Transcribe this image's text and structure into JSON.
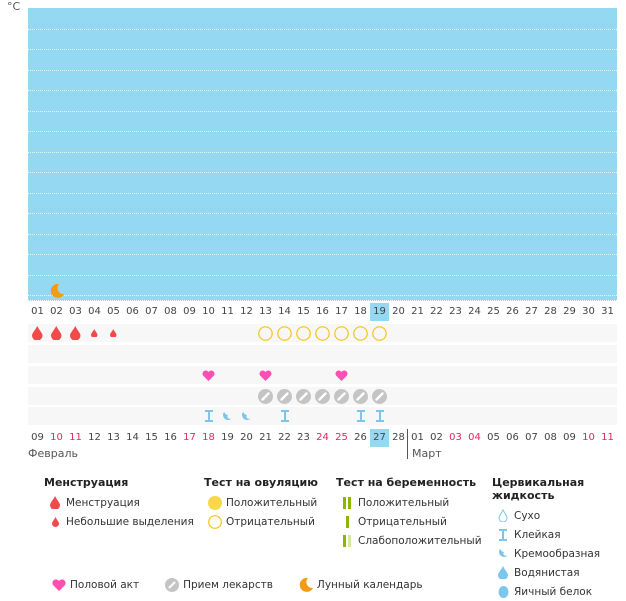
{
  "unit": "°C",
  "top_dates": [
    "01",
    "02",
    "03",
    "04",
    "05",
    "06",
    "07",
    "08",
    "09",
    "10",
    "11",
    "12",
    "13",
    "14",
    "15",
    "16",
    "17",
    "18",
    "19",
    "20",
    "21",
    "22",
    "23",
    "24",
    "25",
    "26",
    "27",
    "28",
    "29",
    "30",
    "31"
  ],
  "top_highlight": 18,
  "bottom_dates": [
    "09",
    "10",
    "11",
    "12",
    "13",
    "14",
    "15",
    "16",
    "17",
    "18",
    "19",
    "20",
    "21",
    "22",
    "23",
    "24",
    "25",
    "26",
    "27",
    "28",
    "01",
    "02",
    "03",
    "04",
    "05",
    "06",
    "07",
    "08",
    "09",
    "10",
    "11"
  ],
  "bottom_red": [
    1,
    2,
    8,
    9,
    15,
    16,
    22,
    23,
    29,
    30
  ],
  "bottom_highlight": 18,
  "months": {
    "feb": "Февраль",
    "mar": "Март"
  },
  "moon": [
    1
  ],
  "menstruation": {
    "0": "heavy",
    "1": "heavy",
    "2": "heavy",
    "3": "light",
    "4": "light"
  },
  "ovulation": {
    "12": "neg",
    "13": "neg",
    "14": "neg",
    "15": "neg",
    "16": "neg",
    "17": "neg",
    "18": "neg"
  },
  "sex": [
    9,
    12,
    16
  ],
  "pills": [
    12,
    13,
    14,
    15,
    16,
    17,
    18
  ],
  "mucus": {
    "9": "sticky",
    "10": "creamy",
    "11": "creamy",
    "13": "sticky",
    "17": "sticky",
    "18": "sticky"
  },
  "colors": {
    "plot": "#94d8f2",
    "blood": "#f04a4a",
    "ovulation": "#f5c518",
    "heart": "#ff4fb3",
    "pill": "#c4c4c4",
    "mucus": "#7cc6ee",
    "moon": "#f39c12",
    "preg": "#8db600"
  },
  "legend": {
    "menstruation": {
      "title": "Менструация",
      "items": [
        "Менструация",
        "Небольшие выделения"
      ]
    },
    "ovulation": {
      "title": "Тест на овуляцию",
      "items": [
        "Положительный",
        "Отрицательный"
      ]
    },
    "pregnancy": {
      "title": "Тест на беременность",
      "items": [
        "Положительный",
        "Отрицательный",
        "Слабоположительный"
      ]
    },
    "mucus": {
      "title": "Цервикальная жидкость",
      "items": [
        "Сухо",
        "Клейкая",
        "Кремообразная",
        "Водянистая",
        "Яичный белок"
      ]
    },
    "other": [
      "Половой акт",
      "Прием лекарств",
      "Лунный календарь"
    ]
  }
}
